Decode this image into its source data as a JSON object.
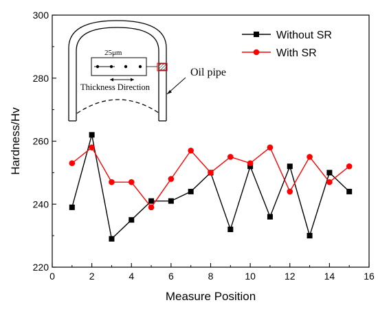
{
  "chart_data": {
    "type": "line",
    "xlabel": "Measure Position",
    "ylabel": "Hardness/Hv",
    "xlim": [
      0,
      16
    ],
    "ylim": [
      220,
      300
    ],
    "x_ticks": [
      0,
      2,
      4,
      6,
      8,
      10,
      12,
      14,
      16
    ],
    "y_ticks": [
      220,
      240,
      260,
      280,
      300
    ],
    "legend_position": "top-right",
    "series": [
      {
        "name": "Without SR",
        "color": "#000000",
        "marker": "square",
        "x": [
          1,
          2,
          3,
          4,
          5,
          6,
          7,
          8,
          9,
          10,
          11,
          12,
          13,
          14,
          15
        ],
        "y": [
          239,
          262,
          229,
          235,
          241,
          241,
          244,
          250,
          232,
          252,
          236,
          252,
          230,
          250,
          244
        ]
      },
      {
        "name": "With SR",
        "color": "#ff0000",
        "marker": "circle",
        "x": [
          1,
          2,
          3,
          4,
          5,
          6,
          7,
          8,
          9,
          10,
          11,
          12,
          13,
          14,
          15
        ],
        "y": [
          253,
          258,
          247,
          247,
          239,
          248,
          257,
          250,
          255,
          253,
          258,
          244,
          255,
          247,
          252
        ]
      }
    ],
    "inset": {
      "scale_label": "25μm",
      "direction_label": "Thickness Direction",
      "callout_label": "Oil pipe"
    }
  }
}
